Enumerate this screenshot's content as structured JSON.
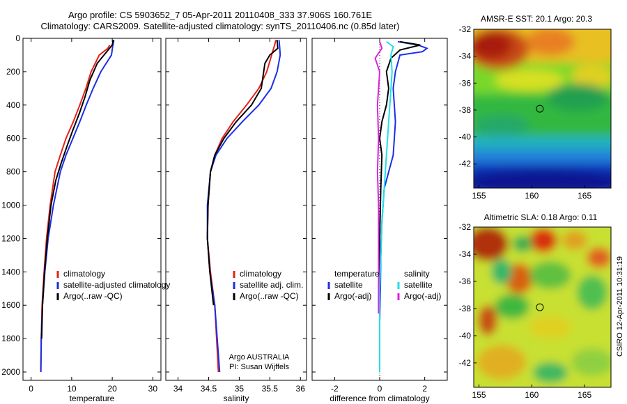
{
  "header": {
    "line1": "Argo profile: CS 5903652_7 05-Apr-2011 20110408_333 37.906S 160.761E",
    "line2": "Climatology: CARS2009. Satellite-adjusted climatology: synTS_20110406.nc (0.85d later)"
  },
  "side_text": "CSIRO 12-Apr-2011 10:31:19",
  "colors": {
    "climatology": "#e8201a",
    "satellite": "#1a2ee8",
    "argo": "#000000",
    "argo_adj_sal": "#e020e0",
    "sat_sal": "#20e0e8"
  },
  "chart_data": [
    {
      "type": "line",
      "panel": "temperature",
      "xlabel": "temperature",
      "xlim": [
        -2,
        32
      ],
      "xticks": [
        0,
        10,
        20,
        30
      ],
      "ylim": [
        0,
        2050
      ],
      "yticks": [
        0,
        200,
        400,
        600,
        800,
        1000,
        1200,
        1400,
        1600,
        1800,
        2000
      ],
      "y_reversed": true,
      "legend": {
        "placement": "lower-right",
        "entries": [
          "climatology",
          "satellite-adjusted climatology",
          "Argo(..raw -QC)"
        ]
      },
      "series": [
        {
          "name": "climatology",
          "color": "#e8201a",
          "x": [
            19.4,
            18.9,
            16.8,
            14.8,
            13.5,
            12.0,
            10.4,
            8.6,
            7.2,
            5.9,
            4.7,
            3.8,
            3.2,
            2.7,
            2.5,
            2.4
          ],
          "y": [
            40,
            60,
            100,
            200,
            300,
            400,
            500,
            600,
            700,
            800,
            1000,
            1200,
            1400,
            1600,
            1800,
            2000
          ]
        },
        {
          "name": "satellite-adjusted climatology",
          "color": "#1a2ee8",
          "x": [
            20.4,
            20.1,
            19.8,
            17.2,
            15.3,
            13.6,
            12.0,
            10.3,
            8.6,
            7.2,
            5.5,
            4.2,
            3.4,
            2.8,
            2.5,
            2.4
          ],
          "y": [
            10,
            50,
            100,
            200,
            300,
            400,
            500,
            600,
            700,
            800,
            1000,
            1200,
            1400,
            1600,
            1800,
            2000
          ]
        },
        {
          "name": "Argo(..raw -QC)",
          "color": "#000000",
          "x": [
            20.3,
            20.0,
            16.3,
            14.5,
            13.3,
            11.9,
            10.3,
            8.8,
            7.4,
            6.1,
            4.9,
            4.0,
            3.3,
            2.8,
            2.6
          ],
          "y": [
            10,
            40,
            150,
            250,
            350,
            450,
            550,
            650,
            750,
            850,
            1000,
            1200,
            1400,
            1600,
            1800
          ]
        }
      ]
    },
    {
      "type": "line",
      "panel": "salinity",
      "xlabel": "salinity",
      "xlim": [
        33.8,
        36.1
      ],
      "xticks": [
        34,
        34.5,
        35,
        35.5,
        36
      ],
      "ylim": [
        0,
        2050
      ],
      "y_reversed": true,
      "legend": {
        "placement": "lower-right",
        "entries": [
          "climatology",
          "satellite adj. clim.",
          "Argo(..raw -QC)"
        ]
      },
      "annotation": [
        "Argo AUSTRALIA",
        "PI: Susan Wijffels"
      ],
      "series": [
        {
          "name": "climatology",
          "color": "#e8201a",
          "x": [
            35.6,
            35.57,
            35.53,
            35.45,
            35.32,
            35.12,
            34.9,
            34.72,
            34.6,
            34.53,
            34.49,
            34.48,
            34.53,
            34.6,
            34.66
          ],
          "y": [
            10,
            50,
            100,
            200,
            300,
            400,
            500,
            600,
            700,
            800,
            1000,
            1200,
            1400,
            1600,
            2000
          ]
        },
        {
          "name": "satellite adj. clim.",
          "color": "#1a2ee8",
          "x": [
            35.65,
            35.66,
            35.67,
            35.62,
            35.52,
            35.32,
            35.05,
            34.8,
            34.62,
            34.53,
            34.48,
            34.48,
            34.52,
            34.6,
            34.68
          ],
          "y": [
            10,
            50,
            100,
            200,
            300,
            400,
            500,
            600,
            700,
            800,
            1000,
            1200,
            1400,
            1600,
            2000
          ]
        },
        {
          "name": "Argo(..raw -QC)",
          "color": "#000000",
          "x": [
            35.62,
            35.63,
            35.5,
            35.42,
            35.4,
            35.36,
            35.2,
            34.95,
            34.75,
            34.6,
            34.53,
            34.49,
            34.48,
            34.52,
            34.58
          ],
          "y": [
            10,
            60,
            100,
            150,
            200,
            300,
            400,
            500,
            600,
            700,
            800,
            1000,
            1200,
            1400,
            1600
          ]
        }
      ]
    },
    {
      "type": "line",
      "panel": "difference",
      "xlabel": "difference from climatology",
      "xlim": [
        -3,
        3
      ],
      "xticks": [
        -2,
        0,
        2
      ],
      "ylim": [
        0,
        2050
      ],
      "y_reversed": true,
      "legend": {
        "placement": "lower-right",
        "columns": [
          [
            "temperature",
            "satellite",
            "Argo(-adj)"
          ],
          [
            "salinity",
            "satellite",
            "Argo(-adj)"
          ]
        ]
      },
      "series": [
        {
          "name": "satellite",
          "group": "temperature",
          "color": "#1a2ee8",
          "x": [
            0.8,
            1.7,
            2.1,
            1.9,
            0.9,
            0.7,
            0.6,
            0.65,
            0.7,
            0.6,
            0.2,
            0.1,
            0.05,
            0.03,
            0.0,
            0.0
          ],
          "y": [
            20,
            40,
            60,
            80,
            100,
            200,
            300,
            400,
            500,
            700,
            900,
            1100,
            1300,
            1500,
            1700,
            2000
          ]
        },
        {
          "name": "Argo(-adj)",
          "group": "temperature",
          "color": "#000000",
          "x": [
            0.9,
            1.8,
            0.9,
            0.5,
            0.3,
            0.4,
            0.3,
            0.1,
            0.0,
            0.1,
            0.05,
            0.0,
            0.0,
            0.0
          ],
          "y": [
            20,
            40,
            70,
            120,
            200,
            300,
            400,
            500,
            600,
            700,
            900,
            1200,
            1500,
            1800
          ]
        },
        {
          "name": "satellite",
          "group": "salinity",
          "color": "#20e0e8",
          "x": [
            0.3,
            0.6,
            0.5,
            0.55,
            0.5,
            0.4,
            0.3,
            0.2,
            0.1,
            0.05,
            0.0,
            0.0,
            0.0
          ],
          "y": [
            20,
            50,
            100,
            200,
            300,
            500,
            700,
            900,
            1100,
            1300,
            1500,
            1700,
            2000
          ]
        },
        {
          "name": "Argo(-adj)",
          "group": "salinity",
          "color": "#e020e0",
          "x": [
            0.0,
            0.1,
            -0.2,
            -0.1,
            0.0,
            -0.1,
            -0.05,
            -0.1,
            -0.05,
            -0.05,
            -0.05
          ],
          "y": [
            20,
            60,
            120,
            160,
            200,
            400,
            600,
            800,
            1000,
            1200,
            1650
          ]
        }
      ]
    },
    {
      "type": "heatmap",
      "panel": "map-sst",
      "title": "AMSR-E SST: 20.1 Argo: 20.3",
      "xlim": [
        154.5,
        167.5
      ],
      "ylim": [
        -43.8,
        -32
      ],
      "xticks": [
        155,
        160,
        165
      ],
      "yticks": [
        -32,
        -34,
        -36,
        -38,
        -40,
        -42
      ],
      "marker": {
        "lon": 160.761,
        "lat": -37.906
      }
    },
    {
      "type": "heatmap",
      "panel": "map-sla",
      "title": "Altimetric SLA: 0.18 Argo: 0.11",
      "xlim": [
        154.5,
        167.5
      ],
      "ylim": [
        -43.8,
        -32
      ],
      "xticks": [
        155,
        160,
        165
      ],
      "yticks": [
        -32,
        -34,
        -36,
        -38,
        -40,
        -42
      ],
      "marker": {
        "lon": 160.761,
        "lat": -37.906
      }
    }
  ]
}
